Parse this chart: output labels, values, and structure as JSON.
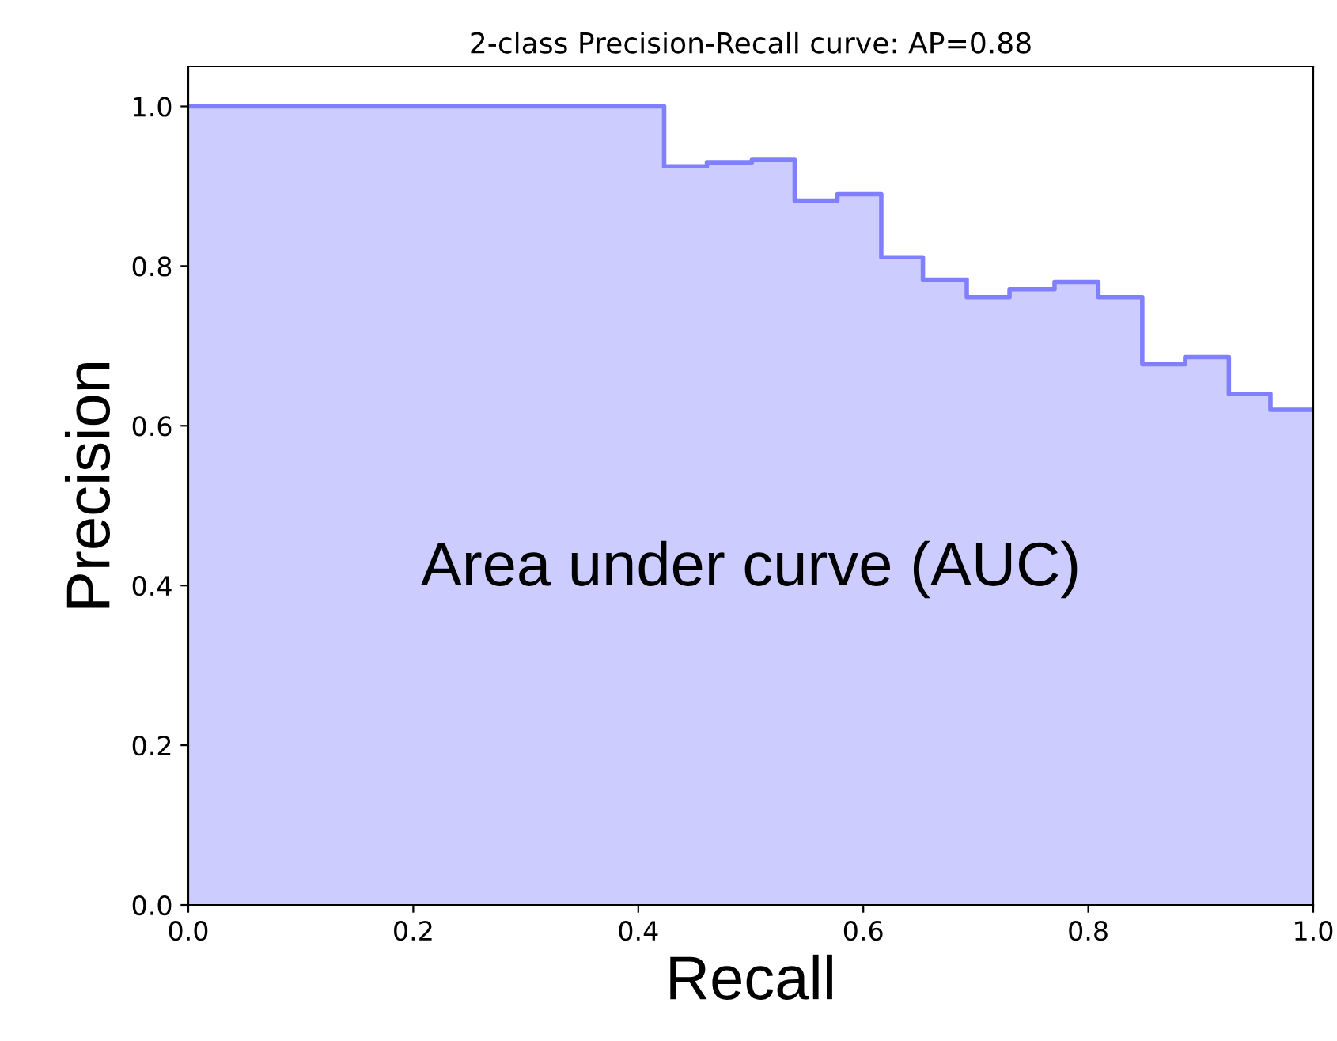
{
  "chart_data": {
    "type": "step",
    "title": "2-class Precision-Recall curve: AP=0.88",
    "xlabel": "Recall",
    "ylabel": "Precision",
    "annotations": [
      "Area under curve (AUC)"
    ],
    "x": [
      0,
      0.423,
      0.461,
      0.501,
      0.539,
      0.577,
      0.616,
      0.653,
      0.692,
      0.73,
      0.77,
      0.809,
      0.848,
      0.886,
      0.925,
      0.962,
      1.0
    ],
    "series": [
      {
        "color": "#8080ff",
        "values": [
          1.0,
          0.925,
          0.93,
          0.933,
          0.882,
          0.89,
          0.811,
          0.783,
          0.761,
          0.771,
          0.78,
          0.761,
          0.677,
          0.686,
          0.64,
          0.62,
          0.62
        ]
      }
    ],
    "xlim": [
      0.0,
      1.0
    ],
    "ylim": [
      0.0,
      1.05
    ],
    "xticks": [
      {
        "value": 0,
        "label": "0.0"
      },
      0.2,
      0.4,
      0.6,
      0.8,
      {
        "value": 1,
        "label": "1.0"
      }
    ],
    "yticks": [
      {
        "value": 0,
        "label": "0.0"
      },
      0.2,
      0.4,
      0.6,
      0.8,
      {
        "value": 1,
        "label": "1.0"
      }
    ],
    "grid": false
  }
}
